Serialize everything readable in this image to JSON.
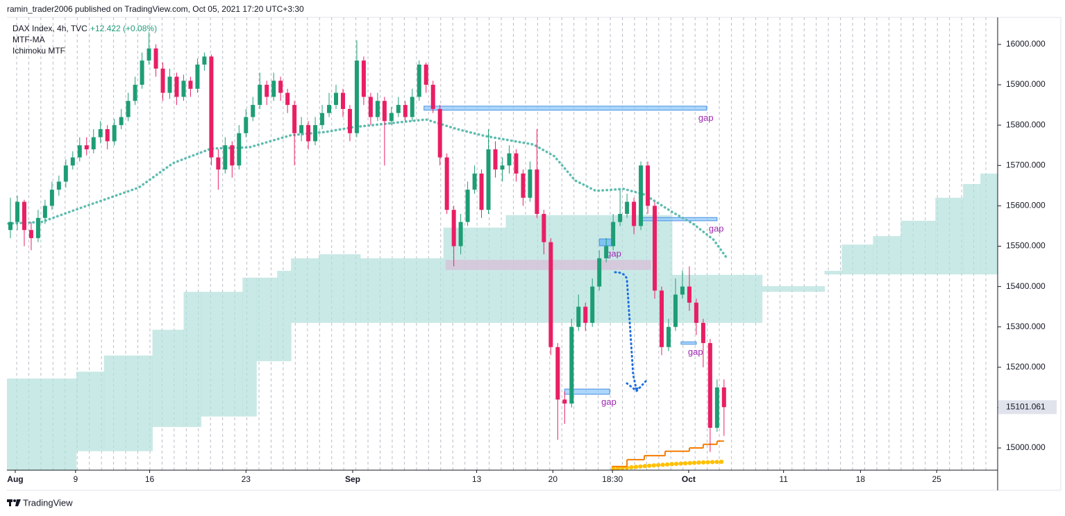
{
  "header": {
    "byline": "ramin_trader2006 published on TradingView.com, Oct 05, 2021 17:20 UTC+3:30"
  },
  "footer": {
    "brand": "TradingView"
  },
  "chart_data": {
    "type": "candlestick",
    "legend": {
      "symbol": "DAX Index, 4h, TVC",
      "change": "+12.422 (+0.08%)",
      "indicators": [
        "MTF-MA",
        "Ichimoku MTF"
      ]
    },
    "up_color": "#1e9d75",
    "down_color": "#e91e63",
    "candles": [
      [
        15540,
        15620,
        15520,
        15560
      ],
      [
        15560,
        15625,
        15540,
        15610
      ],
      [
        15610,
        15615,
        15500,
        15540
      ],
      [
        15540,
        15560,
        15490,
        15520
      ],
      [
        15520,
        15590,
        15510,
        15570
      ],
      [
        15570,
        15615,
        15555,
        15600
      ],
      [
        15600,
        15660,
        15590,
        15640
      ],
      [
        15640,
        15675,
        15625,
        15660
      ],
      [
        15660,
        15715,
        15645,
        15700
      ],
      [
        15700,
        15735,
        15690,
        15720
      ],
      [
        15720,
        15770,
        15710,
        15750
      ],
      [
        15750,
        15770,
        15725,
        15740
      ],
      [
        15740,
        15790,
        15730,
        15770
      ],
      [
        15770,
        15810,
        15755,
        15790
      ],
      [
        15790,
        15800,
        15740,
        15760
      ],
      [
        15760,
        15815,
        15750,
        15800
      ],
      [
        15800,
        15840,
        15790,
        15820
      ],
      [
        15820,
        15880,
        15810,
        15860
      ],
      [
        15860,
        15920,
        15850,
        15900
      ],
      [
        15900,
        15980,
        15890,
        15960
      ],
      [
        15960,
        16030,
        15950,
        15990
      ],
      [
        15990,
        16000,
        15920,
        15940
      ],
      [
        15940,
        15955,
        15860,
        15880
      ],
      [
        15880,
        15940,
        15865,
        15920
      ],
      [
        15920,
        15930,
        15850,
        15870
      ],
      [
        15870,
        15925,
        15860,
        15910
      ],
      [
        15910,
        15920,
        15870,
        15890
      ],
      [
        15890,
        15965,
        15880,
        15950
      ],
      [
        15950,
        15980,
        15935,
        15970
      ],
      [
        15970,
        15975,
        15700,
        15720
      ],
      [
        15720,
        15740,
        15640,
        15690
      ],
      [
        15690,
        15770,
        15680,
        15750
      ],
      [
        15750,
        15760,
        15670,
        15700
      ],
      [
        15700,
        15800,
        15690,
        15780
      ],
      [
        15780,
        15840,
        15770,
        15820
      ],
      [
        15820,
        15870,
        15810,
        15850
      ],
      [
        15850,
        15930,
        15840,
        15900
      ],
      [
        15900,
        15910,
        15850,
        15870
      ],
      [
        15870,
        15930,
        15860,
        15910
      ],
      [
        15910,
        15920,
        15860,
        15880
      ],
      [
        15880,
        15890,
        15830,
        15850
      ],
      [
        15850,
        15860,
        15700,
        15780
      ],
      [
        15780,
        15820,
        15760,
        15800
      ],
      [
        15800,
        15810,
        15740,
        15760
      ],
      [
        15760,
        15820,
        15750,
        15800
      ],
      [
        15800,
        15850,
        15790,
        15830
      ],
      [
        15830,
        15880,
        15820,
        15850
      ],
      [
        15850,
        15900,
        15840,
        15880
      ],
      [
        15880,
        15890,
        15820,
        15840
      ],
      [
        15840,
        15850,
        15760,
        15780
      ],
      [
        15780,
        16010,
        15770,
        15960
      ],
      [
        15960,
        15970,
        15850,
        15870
      ],
      [
        15870,
        15880,
        15800,
        15820
      ],
      [
        15820,
        15880,
        15810,
        15860
      ],
      [
        15860,
        15870,
        15700,
        15810
      ],
      [
        15810,
        15845,
        15800,
        15830
      ],
      [
        15830,
        15870,
        15820,
        15850
      ],
      [
        15850,
        15860,
        15810,
        15820
      ],
      [
        15820,
        15890,
        15810,
        15870
      ],
      [
        15870,
        15960,
        15860,
        15950
      ],
      [
        15950,
        15955,
        15880,
        15900
      ],
      [
        15900,
        15910,
        15830,
        15840
      ],
      [
        15840,
        15850,
        15700,
        15720
      ],
      [
        15720,
        15730,
        15580,
        15590
      ],
      [
        15590,
        15600,
        15450,
        15500
      ],
      [
        15500,
        15580,
        15480,
        15560
      ],
      [
        15560,
        15660,
        15550,
        15640
      ],
      [
        15640,
        15700,
        15630,
        15680
      ],
      [
        15680,
        15690,
        15570,
        15590
      ],
      [
        15590,
        15790,
        15580,
        15740
      ],
      [
        15740,
        15760,
        15670,
        15690
      ],
      [
        15690,
        15720,
        15660,
        15700
      ],
      [
        15700,
        15750,
        15680,
        15730
      ],
      [
        15730,
        15740,
        15660,
        15680
      ],
      [
        15680,
        15690,
        15600,
        15620
      ],
      [
        15620,
        15710,
        15610,
        15690
      ],
      [
        15690,
        15790,
        15570,
        15580
      ],
      [
        15580,
        15590,
        15480,
        15510
      ],
      [
        15510,
        15520,
        15230,
        15250
      ],
      [
        15250,
        15260,
        15020,
        15120
      ],
      [
        15120,
        15140,
        15060,
        15110
      ],
      [
        15110,
        15320,
        15100,
        15300
      ],
      [
        15300,
        15380,
        15290,
        15350
      ],
      [
        15350,
        15360,
        15290,
        15310
      ],
      [
        15310,
        15420,
        15300,
        15400
      ],
      [
        15400,
        15490,
        15390,
        15470
      ],
      [
        15470,
        15520,
        15460,
        15500
      ],
      [
        15500,
        15580,
        15490,
        15560
      ],
      [
        15560,
        15640,
        15550,
        15580
      ],
      [
        15580,
        15630,
        15570,
        15610
      ],
      [
        15610,
        15620,
        15530,
        15550
      ],
      [
        15550,
        15710,
        15540,
        15700
      ],
      [
        15700,
        15710,
        15580,
        15600
      ],
      [
        15600,
        15610,
        15370,
        15390
      ],
      [
        15390,
        15400,
        15230,
        15250
      ],
      [
        15250,
        15320,
        15240,
        15300
      ],
      [
        15300,
        15420,
        15290,
        15380
      ],
      [
        15380,
        15440,
        15370,
        15400
      ],
      [
        15400,
        15450,
        15340,
        15360
      ],
      [
        15360,
        15370,
        15280,
        15310
      ],
      [
        15310,
        15320,
        15200,
        15260
      ],
      [
        15260,
        15270,
        14990,
        15050
      ],
      [
        15050,
        15170,
        15040,
        15150
      ],
      [
        15150,
        15170,
        15030,
        15101.061
      ]
    ],
    "ylim": [
      14945,
      16067
    ],
    "yticks": [
      {
        "value": 15000,
        "label": "15000.000"
      },
      {
        "value": 15100,
        "label": "15100.000"
      },
      {
        "value": 15200,
        "label": "15200.000"
      },
      {
        "value": 15300,
        "label": "15300.000"
      },
      {
        "value": 15400,
        "label": "15400.000"
      },
      {
        "value": 15500,
        "label": "15500.000"
      },
      {
        "value": 15600,
        "label": "15600.000"
      },
      {
        "value": 15700,
        "label": "15700.000"
      },
      {
        "value": 15800,
        "label": "15800.000"
      },
      {
        "value": 15900,
        "label": "15900.000"
      },
      {
        "value": 16000,
        "label": "16000.000"
      }
    ],
    "xlim": [
      0,
      143
    ],
    "xticks": [
      {
        "value": 1.2,
        "label": "Aug"
      },
      {
        "value": 9.9,
        "label": "9"
      },
      {
        "value": 20.6,
        "label": "16"
      },
      {
        "value": 34.5,
        "label": "23"
      },
      {
        "value": 49.9,
        "label": "Sep"
      },
      {
        "value": 67.8,
        "label": "13"
      },
      {
        "value": 78.8,
        "label": "20"
      },
      {
        "value": 87.4,
        "label": "18:30"
      },
      {
        "value": 98.4,
        "label": "Oct"
      },
      {
        "value": 112.1,
        "label": "11"
      },
      {
        "value": 123.2,
        "label": "18"
      },
      {
        "value": 134.2,
        "label": "25"
      }
    ],
    "ma": {
      "color": "#5dbcaf",
      "x": [
        0.2,
        5,
        11,
        19,
        24,
        29.5,
        35,
        41,
        46,
        50,
        55,
        60.5,
        65,
        69,
        76,
        79,
        82,
        85,
        89,
        92,
        96,
        99,
        102,
        103.8
      ],
      "values": [
        15556,
        15560,
        15597,
        15645,
        15706,
        15742,
        15745,
        15775,
        15783,
        15795,
        15804,
        15814,
        15790,
        15773,
        15752,
        15723,
        15663,
        15637,
        15642,
        15628,
        15585,
        15556,
        15516,
        15473
      ]
    },
    "cloud": {
      "color": "#b2dfdb",
      "x": [
        0,
        10,
        14,
        21,
        25.5,
        28,
        34,
        36,
        39,
        41,
        45,
        51,
        63,
        72,
        96,
        109,
        118,
        120.5,
        125,
        129,
        134,
        138,
        140.5
      ],
      "upper": [
        15172,
        15189,
        15229,
        15293,
        15387,
        15387,
        15422,
        15422,
        15439,
        15470,
        15480,
        15470,
        15546,
        15577,
        15429,
        15401,
        15439,
        15504,
        15525,
        15563,
        15620,
        15654,
        15680
      ],
      "lower": [
        14900,
        14992,
        14992,
        15052,
        15052,
        15078,
        15078,
        15215,
        15215,
        15310,
        15310,
        15310,
        15310,
        15310,
        15310,
        15387,
        15430,
        15430,
        15430,
        15430,
        15430,
        15430,
        15430
      ]
    },
    "stop": {
      "color": "#f57c00",
      "x": [
        87.3,
        89.5,
        92,
        95,
        98.5,
        100.5,
        102.5
      ],
      "values": [
        14954,
        14971,
        14981,
        14992,
        15000,
        15009,
        15017
      ]
    },
    "dots": {
      "color": "#ffc107",
      "x": [
        87.5,
        92,
        96,
        100,
        103.5
      ],
      "values": [
        14948,
        14955,
        14960,
        14964,
        14966
      ]
    },
    "zones": [
      {
        "x": [
          60.2,
          101
        ],
        "y": [
          15837,
          15847
        ],
        "color": "#90caf9",
        "label": "gap"
      },
      {
        "x": [
          91.5,
          102.5
        ],
        "y": [
          15563,
          15571
        ],
        "color": "#90caf9",
        "label": "gap"
      },
      {
        "x": [
          85.5,
          87.7
        ],
        "y": [
          15501,
          15518
        ],
        "color": "#64b5f6",
        "label": "gap"
      },
      {
        "x": [
          63.3,
          93
        ],
        "y": [
          15441,
          15466
        ],
        "color": "#d8bfd8"
      },
      {
        "x": [
          97.3,
          99.5
        ],
        "y": [
          15257,
          15263
        ],
        "color": "#90caf9",
        "label": "gap"
      },
      {
        "x": [
          80.5,
          87
        ],
        "y": [
          15133,
          15146
        ],
        "color": "#90caf9",
        "label": "gap"
      }
    ]
  }
}
